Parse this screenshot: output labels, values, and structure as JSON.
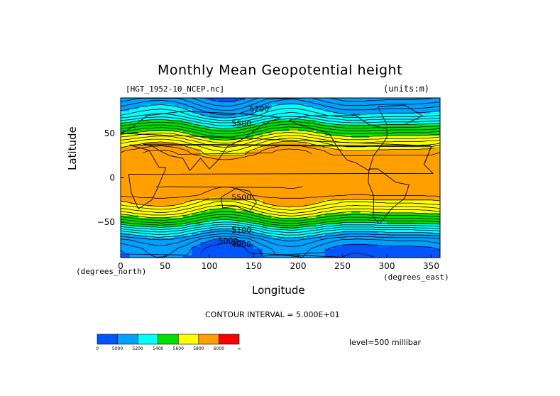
{
  "chart_data": {
    "type": "heatmap",
    "title": "Monthly Mean Geopotential height",
    "dataset_label": "[HGT_1952-10_NCEP.nc]",
    "units_label": "(units:m)",
    "xlabel": "Longitude",
    "ylabel": "Latitude",
    "x_unit_label": "(degrees_east)",
    "y_unit_label": "(degrees_north)",
    "xlim": [
      0,
      360
    ],
    "ylim": [
      -90,
      90
    ],
    "x_ticks": [
      0,
      50,
      100,
      150,
      200,
      250,
      300,
      350
    ],
    "y_ticks": [
      50,
      0,
      -50
    ],
    "y_tick_labels": [
      "50",
      "0",
      "−50"
    ],
    "contour_interval": "CONTOUR INTERVAL = 5.000E+01",
    "level": "level=500 millibar",
    "colorbar": {
      "labels": [
        "0",
        "5000",
        "5200",
        "5400",
        "5600",
        "5800",
        "6000",
        "∞"
      ],
      "colors": [
        "#0055ff",
        "#00a0ff",
        "#00ffff",
        "#00e000",
        "#ffff00",
        "#ffa000",
        "#ff0000"
      ]
    },
    "contour_labels": [
      {
        "text": "5200",
        "lon": 145,
        "lat": 75
      },
      {
        "text": "5500",
        "lon": 125,
        "lat": 58
      },
      {
        "text": "5500",
        "lon": 125,
        "lat": -25
      },
      {
        "text": "5100",
        "lon": 125,
        "lat": -62
      },
      {
        "text": "5000",
        "lon": 110,
        "lat": -74
      },
      {
        "text": "4900",
        "lon": 125,
        "lat": -78
      }
    ],
    "height_profile": {
      "lat": [
        90,
        80,
        70,
        60,
        50,
        40,
        30,
        20,
        10,
        0,
        -10,
        -20,
        -30,
        -40,
        -50,
        -60,
        -70,
        -80,
        -90
      ],
      "height_m": [
        5050,
        5150,
        5250,
        5420,
        5580,
        5730,
        5840,
        5880,
        5880,
        5880,
        5880,
        5860,
        5760,
        5620,
        5450,
        5250,
        5080,
        5000,
        4980
      ]
    }
  }
}
